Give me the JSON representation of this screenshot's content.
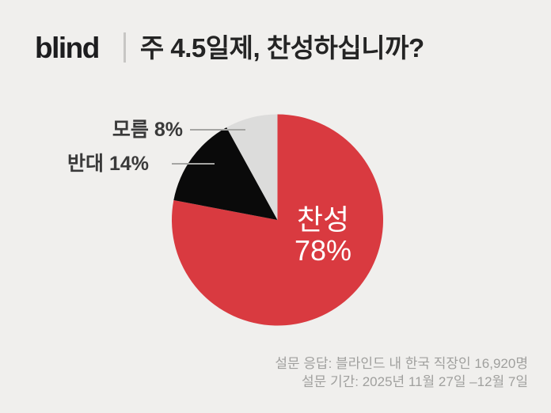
{
  "header": {
    "logo": "blind",
    "title": "주 4.5일제, 찬성하십니까?"
  },
  "chart_data": {
    "type": "pie",
    "title": "주 4.5일제, 찬성하십니까?",
    "start_angle_deg": 0,
    "direction": "clockwise",
    "legend_position": "none",
    "slices": [
      {
        "id": "agree",
        "label": "찬성",
        "value": 78,
        "color": "#d93a40",
        "label_placement": "inside"
      },
      {
        "id": "oppose",
        "label": "반대",
        "value": 14,
        "color": "#0a0a0a",
        "label_placement": "outside"
      },
      {
        "id": "unknown",
        "label": "모름",
        "value": 8,
        "color": "#dcdcdb",
        "label_placement": "outside"
      }
    ]
  },
  "callouts": {
    "agree_name": "찬성",
    "agree_pct": "78%",
    "oppose_text": "반대 14%",
    "unknown_text": "모름 8%"
  },
  "footer": {
    "line1": "설문 응답: 블라인드 내 한국 직장인 16,920명",
    "line2": "설문 기간: 2025년 11월 27일 –12월 7일"
  },
  "colors": {
    "background": "#f0efed",
    "brand_red": "#d93a40",
    "slice_black": "#0a0a0a",
    "slice_gray": "#dcdcdb",
    "heading_text": "#242424",
    "callout_text": "#3a3a3a",
    "footer_text": "#a0a09e",
    "leader_line": "#a5a5a3",
    "divider": "#c7c6c4"
  }
}
